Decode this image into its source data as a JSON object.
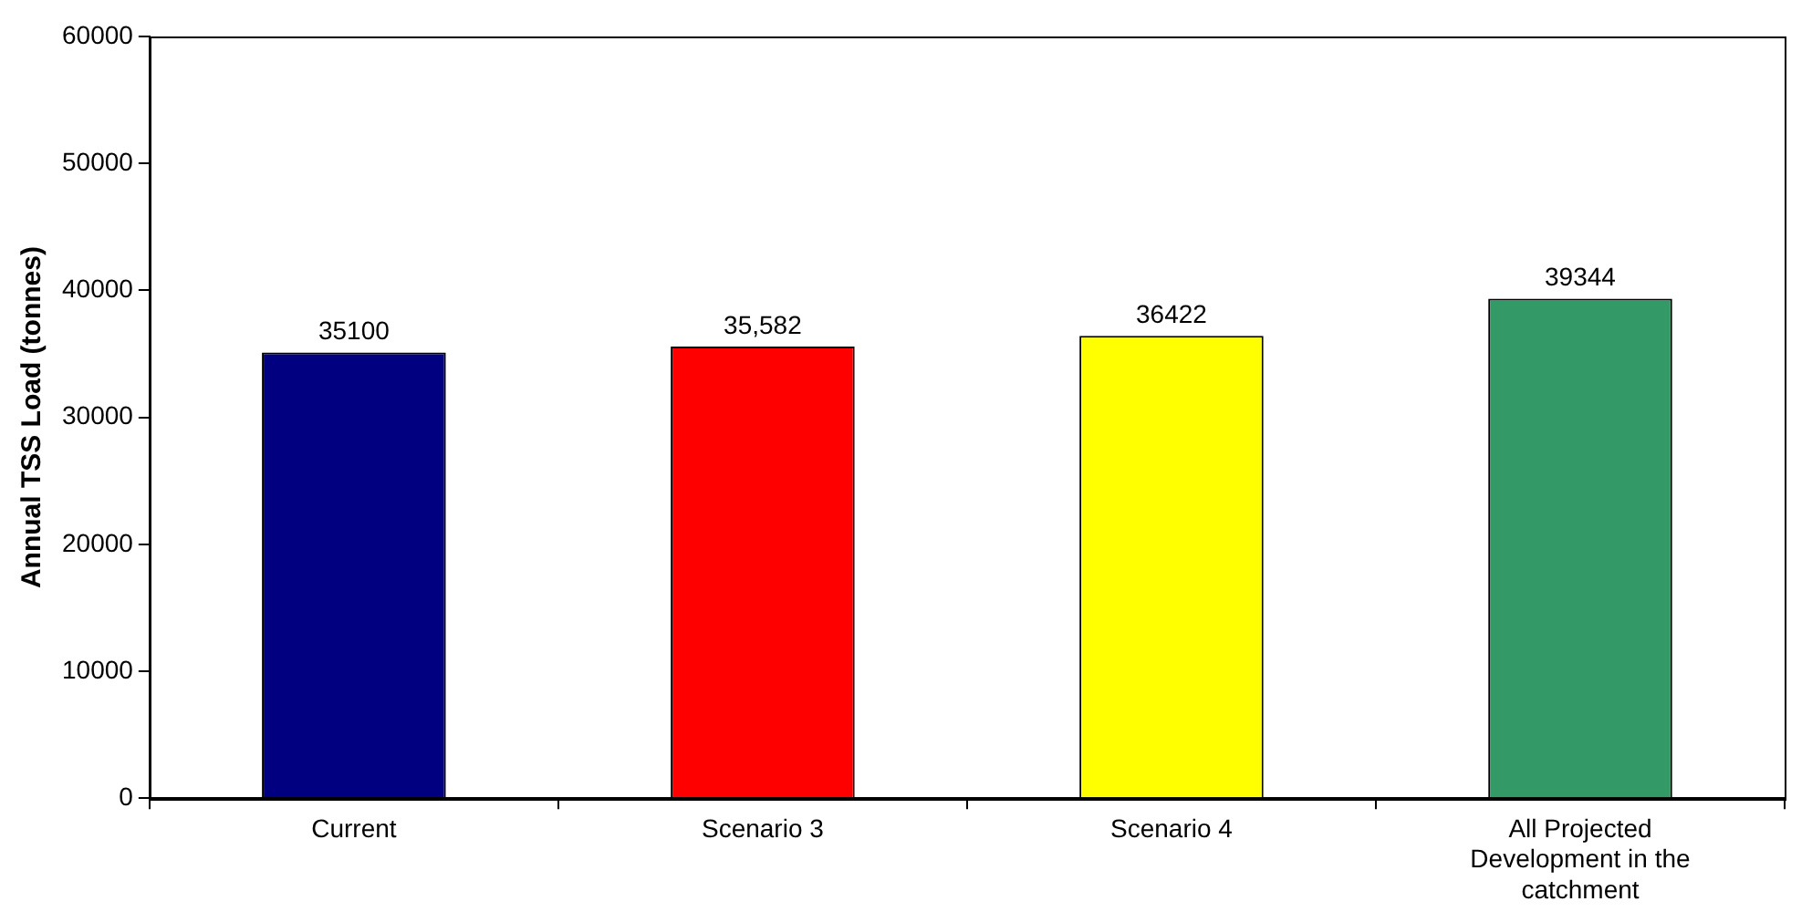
{
  "chart_data": {
    "type": "bar",
    "ylabel": "Annual TSS Load (tonnes)",
    "categories": [
      "Current",
      "Scenario 3",
      "Scenario 4",
      "All Projected Development in the catchment"
    ],
    "values": [
      35100,
      35582,
      36422,
      39344
    ],
    "colors": [
      "#000080",
      "#ff0000",
      "#ffff00",
      "#339966"
    ],
    "value_labels": [
      "35100",
      "35,582",
      "36422",
      "39344"
    ],
    "ylim": [
      0,
      60000
    ],
    "yticks": [
      0,
      10000,
      20000,
      30000,
      40000,
      50000,
      60000
    ],
    "grid": false,
    "legend": false
  }
}
